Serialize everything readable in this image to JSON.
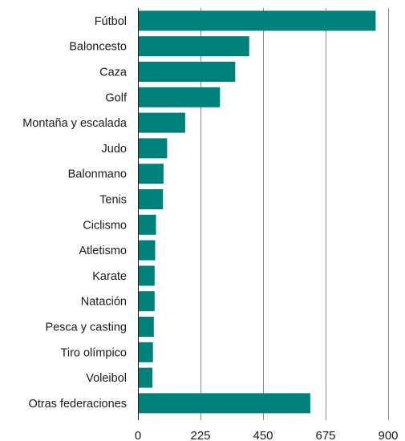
{
  "chart_data": {
    "type": "bar",
    "orientation": "horizontal",
    "categories": [
      "Fútbol",
      "Baloncesto",
      "Caza",
      "Golf",
      "Montaña y escalada",
      "Judo",
      "Balonmano",
      "Tenis",
      "Ciclismo",
      "Atletismo",
      "Karate",
      "Natación",
      "Pesca y casting",
      "Tiro olímpico",
      "Voleibol",
      "Otras federaciones"
    ],
    "values": [
      855,
      400,
      350,
      295,
      170,
      105,
      92,
      90,
      65,
      62,
      60,
      60,
      57,
      54,
      52,
      620
    ],
    "xlim": [
      0,
      900
    ],
    "xticks": [
      0,
      225,
      450,
      675,
      900
    ],
    "xtick_labels": [
      "0",
      "225",
      "450",
      "675",
      "900"
    ],
    "title": "",
    "xlabel": "",
    "ylabel": "",
    "grid": "vertical",
    "legend": "none",
    "colors": {
      "bar": "#00807a",
      "grid": "#8c8c8c",
      "axis": "#1a1a1a",
      "text": "#1a1a1a"
    }
  }
}
